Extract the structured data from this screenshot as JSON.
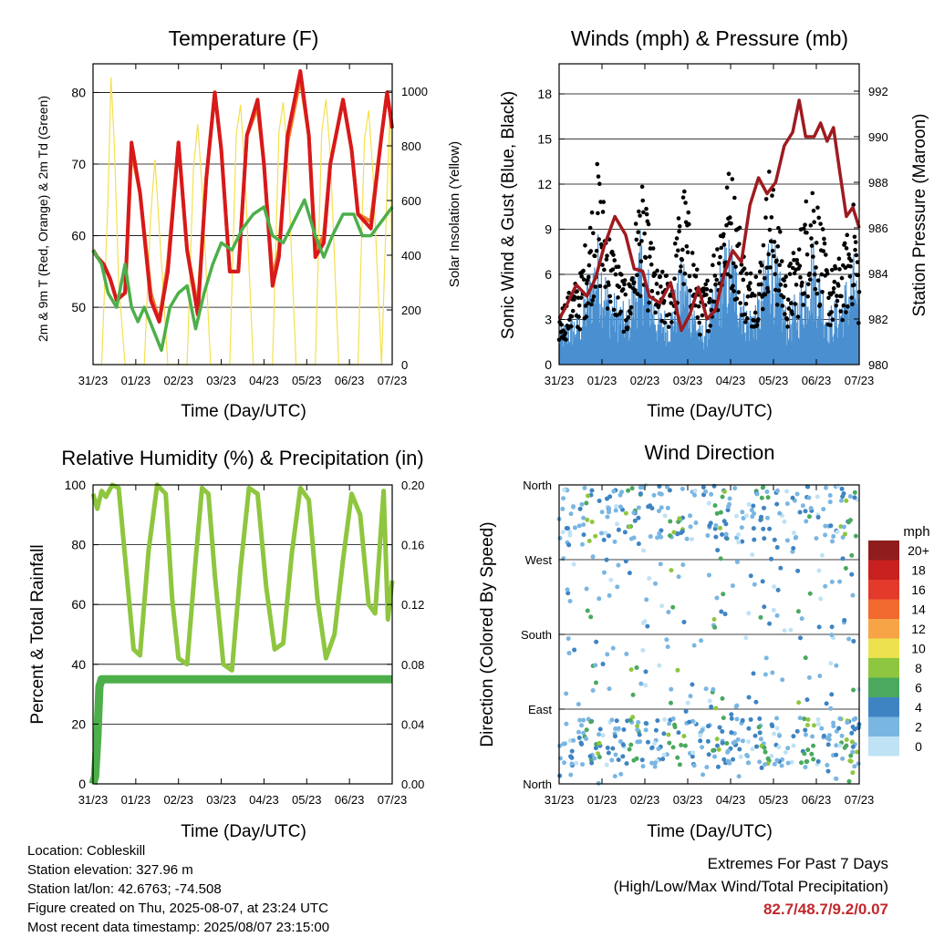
{
  "colors": {
    "t2m": "#d7191c",
    "t9m": "#f07e26",
    "td2m": "#4daf4a",
    "solar": "#f4e04d",
    "wind": "#4a90d0",
    "gust": "#000000",
    "pressure": "#9e1b20",
    "rh": "#8ec63f",
    "precip": "#4daf4a",
    "extremes": "#c0282d"
  },
  "chart_data": [
    {
      "id": "temperature",
      "type": "line",
      "title": "Temperature (F)",
      "xlabel": "Time (Day/UTC)",
      "ylabel": "2m & 9m T (Red, Orange) & 2m Td (Green)",
      "y2label": "Solar Insolation (Yellow)",
      "xticks": [
        "31/23",
        "01/23",
        "02/23",
        "03/23",
        "04/23",
        "05/23",
        "06/23",
        "07/23"
      ],
      "xlim": [
        0,
        7
      ],
      "ylim": [
        42,
        84
      ],
      "yticks": [
        50,
        60,
        70,
        80
      ],
      "y2lim": [
        0,
        1100
      ],
      "y2ticks": [
        0,
        200,
        400,
        600,
        800,
        1000
      ],
      "grid": true,
      "series": [
        {
          "key": "t9m",
          "color": "#f07e26",
          "x": [
            0,
            0.1,
            0.25,
            0.4,
            0.55,
            0.75,
            0.9,
            1.1,
            1.35,
            1.55,
            1.75,
            2.0,
            2.2,
            2.45,
            2.65,
            2.85,
            3.0,
            3.2,
            3.4,
            3.6,
            3.85,
            4.0,
            4.2,
            4.35,
            4.55,
            4.85,
            5.05,
            5.2,
            5.4,
            5.55,
            5.85,
            6.05,
            6.2,
            6.5,
            6.75,
            6.88,
            7.0
          ],
          "values": [
            58,
            57,
            56,
            54,
            51,
            52,
            72,
            66,
            52,
            48,
            56,
            73,
            58,
            50,
            68,
            80,
            72,
            55,
            55,
            74,
            78,
            70,
            54,
            58,
            73,
            82,
            74,
            58,
            60,
            70,
            79,
            72,
            63,
            62,
            74,
            80,
            75
          ]
        },
        {
          "key": "t2m",
          "color": "#d7191c",
          "x": [
            0,
            0.1,
            0.25,
            0.4,
            0.55,
            0.75,
            0.9,
            1.1,
            1.35,
            1.55,
            1.75,
            2.0,
            2.2,
            2.45,
            2.65,
            2.85,
            3.0,
            3.2,
            3.4,
            3.6,
            3.85,
            4.0,
            4.2,
            4.35,
            4.55,
            4.85,
            5.05,
            5.2,
            5.4,
            5.55,
            5.85,
            6.05,
            6.2,
            6.5,
            6.75,
            6.88,
            7.0
          ],
          "values": [
            58,
            57,
            56,
            54,
            51,
            52,
            73,
            66,
            51,
            48,
            55,
            73,
            58,
            49,
            68,
            80,
            72,
            55,
            55,
            74,
            79,
            70,
            53,
            57,
            74,
            83,
            74,
            57,
            59,
            70,
            79,
            72,
            63,
            61,
            74,
            80,
            75
          ]
        },
        {
          "key": "td2m",
          "color": "#4daf4a",
          "x": [
            0,
            0.2,
            0.35,
            0.55,
            0.75,
            0.9,
            1.05,
            1.2,
            1.4,
            1.6,
            1.8,
            2.0,
            2.2,
            2.4,
            2.6,
            2.8,
            3.0,
            3.25,
            3.5,
            3.75,
            4.0,
            4.2,
            4.45,
            4.7,
            4.95,
            5.2,
            5.4,
            5.6,
            5.85,
            6.1,
            6.3,
            6.5,
            6.75,
            7.0
          ],
          "values": [
            58,
            56,
            52,
            50,
            56,
            50,
            48,
            50,
            47,
            44,
            50,
            52,
            53,
            47,
            52,
            56,
            59,
            58,
            61,
            63,
            64,
            60,
            59,
            62,
            65,
            60,
            57,
            60,
            63,
            63,
            60,
            60,
            62,
            64
          ]
        }
      ],
      "solar_x": [
        0,
        0.2,
        0.35,
        0.42,
        0.5,
        0.6,
        0.75,
        1.0,
        1.2,
        1.35,
        1.45,
        1.55,
        1.75,
        2.0,
        2.2,
        2.35,
        2.45,
        2.55,
        2.75,
        3.0,
        3.2,
        3.35,
        3.45,
        3.55,
        3.75,
        4.0,
        4.2,
        4.35,
        4.45,
        4.55,
        4.75,
        5.0,
        5.2,
        5.35,
        5.45,
        5.55,
        5.75,
        6.0,
        6.2,
        6.35,
        6.45,
        6.55,
        6.75,
        6.85,
        6.95,
        7.0
      ],
      "solar_values": [
        0,
        0,
        600,
        1050,
        800,
        300,
        0,
        0,
        0,
        550,
        750,
        500,
        0,
        0,
        0,
        720,
        880,
        650,
        0,
        0,
        0,
        840,
        950,
        720,
        0,
        0,
        0,
        850,
        960,
        760,
        0,
        0,
        0,
        850,
        970,
        770,
        0,
        0,
        0,
        820,
        930,
        700,
        0,
        500,
        950,
        150
      ]
    },
    {
      "id": "winds",
      "type": "line",
      "title": "Winds (mph) & Pressure (mb)",
      "xlabel": "Time (Day/UTC)",
      "ylabel": "Sonic Wind & Gust (Blue, Black)",
      "y2label": "Station Pressure (Maroon)",
      "xticks": [
        "31/23",
        "01/23",
        "02/23",
        "03/23",
        "04/23",
        "05/23",
        "06/23",
        "07/23"
      ],
      "xlim": [
        0,
        7
      ],
      "ylim": [
        0,
        20
      ],
      "yticks": [
        0,
        3,
        6,
        9,
        12,
        15,
        18
      ],
      "y2lim": [
        980,
        993.2
      ],
      "y2ticks": [
        980,
        982,
        984,
        986,
        988,
        990,
        992
      ],
      "grid": true,
      "wind_x": [
        0,
        0.5,
        0.9,
        1.2,
        1.6,
        1.9,
        2.3,
        2.6,
        2.9,
        3.3,
        3.5,
        3.8,
        4.0,
        4.4,
        4.7,
        4.9,
        5.3,
        5.6,
        5.9,
        6.3,
        6.6,
        6.9,
        7.0
      ],
      "wind_values": [
        2,
        3,
        7,
        4,
        3,
        7,
        3,
        3,
        6,
        2,
        3,
        6,
        7,
        3,
        4,
        8,
        3,
        4,
        7,
        3,
        4,
        6,
        3
      ],
      "gust_x": [
        0,
        0.5,
        0.9,
        1.2,
        1.6,
        1.9,
        2.3,
        2.6,
        2.9,
        3.3,
        3.5,
        3.8,
        4.0,
        4.4,
        4.7,
        4.9,
        5.3,
        5.6,
        5.9,
        6.3,
        6.6,
        6.9,
        7.0
      ],
      "gust_values": [
        3,
        5,
        11,
        7,
        4,
        10,
        5,
        5,
        10,
        4,
        5,
        9,
        11,
        5,
        6,
        11,
        5,
        7,
        11,
        5,
        6,
        9,
        5
      ],
      "pressure_x": [
        0,
        0.15,
        0.4,
        0.65,
        0.85,
        1.05,
        1.3,
        1.55,
        1.75,
        1.95,
        2.1,
        2.35,
        2.6,
        2.85,
        3.05,
        3.25,
        3.45,
        3.65,
        3.85,
        4.05,
        4.25,
        4.45,
        4.65,
        4.85,
        5.05,
        5.25,
        5.45,
        5.6,
        5.75,
        5.95,
        6.1,
        6.25,
        6.4,
        6.55,
        6.7,
        6.85,
        7.0
      ],
      "pressure_values": [
        982,
        982.5,
        983.5,
        983,
        983.8,
        985.2,
        986.5,
        985.7,
        984.2,
        984.1,
        983,
        982.7,
        983.6,
        981.5,
        982.2,
        983.4,
        982,
        982.4,
        984,
        985,
        984.5,
        987,
        988.2,
        987.5,
        988,
        989.6,
        990.2,
        991.6,
        990,
        990,
        990.6,
        989.8,
        990.4,
        988.4,
        986.5,
        986.9,
        986
      ]
    },
    {
      "id": "humidity",
      "type": "line",
      "title": "Relative Humidity (%) & Precipitation (in)",
      "xlabel": "Time (Day/UTC)",
      "ylabel": "Percent & Total Rainfall",
      "xticks": [
        "31/23",
        "01/23",
        "02/23",
        "03/23",
        "04/23",
        "05/23",
        "06/23",
        "07/23"
      ],
      "xlim": [
        0,
        7
      ],
      "ylim": [
        0,
        100
      ],
      "yticks": [
        0,
        20,
        40,
        60,
        80,
        100
      ],
      "y2lim": [
        0,
        0.2
      ],
      "y2ticks": [
        "0.00",
        "0.04",
        "0.08",
        "0.12",
        "0.16",
        "0.20"
      ],
      "grid": true,
      "series": [
        {
          "key": "rh",
          "color": "#8ec63f",
          "x": [
            0,
            0.1,
            0.2,
            0.3,
            0.45,
            0.6,
            0.8,
            0.95,
            1.1,
            1.3,
            1.5,
            1.7,
            1.85,
            2.0,
            2.2,
            2.4,
            2.55,
            2.7,
            2.85,
            3.05,
            3.25,
            3.45,
            3.65,
            3.85,
            4.05,
            4.25,
            4.45,
            4.65,
            4.85,
            5.05,
            5.25,
            5.45,
            5.65,
            5.85,
            6.05,
            6.25,
            6.45,
            6.6,
            6.8,
            6.9,
            7.0
          ],
          "values": [
            97,
            92,
            98,
            96,
            100,
            99,
            68,
            45,
            43,
            78,
            100,
            97,
            62,
            42,
            40,
            75,
            99,
            97,
            70,
            40,
            38,
            72,
            99,
            97,
            66,
            45,
            47,
            77,
            99,
            95,
            62,
            42,
            50,
            75,
            97,
            90,
            60,
            57,
            98,
            55,
            68
          ]
        },
        {
          "key": "precip",
          "color": "#4daf4a",
          "x": [
            0,
            0.05,
            0.1,
            0.15,
            0.2,
            7.0
          ],
          "values": [
            0,
            0.005,
            0.03,
            0.065,
            0.07,
            0.07
          ]
        }
      ]
    },
    {
      "id": "wind_direction",
      "type": "scatter",
      "title": "Wind Direction",
      "xlabel": "Time (Day/UTC)",
      "ylabel": "Direction (Colored By Speed)",
      "xticks": [
        "31/23",
        "01/23",
        "02/23",
        "03/23",
        "04/23",
        "05/23",
        "06/23",
        "07/23"
      ],
      "xlim": [
        0,
        7
      ],
      "ylim": [
        0,
        360
      ],
      "yticks": [
        "North",
        "East",
        "South",
        "West",
        "North"
      ],
      "grid": true,
      "legend": {
        "title": "mph",
        "labels": [
          "20+",
          "18",
          "16",
          "14",
          "12",
          "10",
          "8",
          "6",
          "4",
          "2",
          "0"
        ],
        "colors": [
          "#8f1d1d",
          "#c8211f",
          "#e33a2c",
          "#f26a2e",
          "#f7a447",
          "#ece14f",
          "#8ec63f",
          "#4aa95f",
          "#3f84c2",
          "#7ab6e2",
          "#bfe2f5"
        ],
        "placement": "right"
      }
    }
  ],
  "info": {
    "location": "Location: Cobleskill",
    "elevation": "Station elevation: 327.96 m",
    "latlon": "Station lat/lon: 42.6763; -74.508",
    "created": "Figure created on Thu, 2025-08-07, at 23:24 UTC",
    "recent": "Most recent data timestamp: 2025/08/07 23:15:00"
  },
  "extremes": {
    "title": "Extremes For Past 7 Days",
    "subtitle": "(High/Low/Max Wind/Total Precipitation)",
    "values": "82.7/48.7/9.2/0.07"
  }
}
